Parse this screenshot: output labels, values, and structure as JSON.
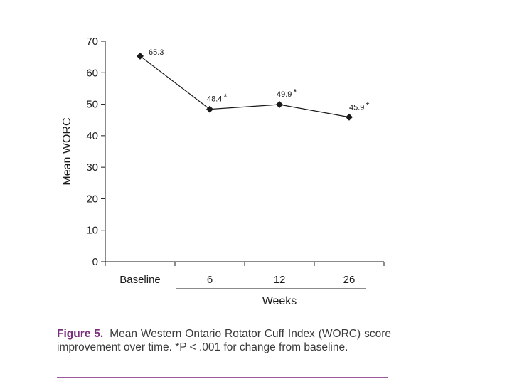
{
  "chart_data": {
    "type": "line",
    "categories": [
      "Baseline",
      "6",
      "12",
      "26"
    ],
    "values": [
      65.3,
      48.4,
      49.9,
      45.9
    ],
    "data_labels": [
      "65.3",
      "48.4",
      "49.9",
      "45.9"
    ],
    "significance_marks": [
      "",
      "*",
      "*",
      "*"
    ],
    "ylabel": "Mean WORC",
    "xlabel": "Weeks",
    "ylim": [
      0,
      70
    ],
    "yticks": [
      0,
      10,
      20,
      30,
      40,
      50,
      60,
      70
    ],
    "ytick_labels": [
      "0",
      "10",
      "20",
      "30",
      "40",
      "50",
      "60",
      "70"
    ],
    "weeks_group": [
      "6",
      "12",
      "26"
    ],
    "marker": "diamond",
    "line_color": "#1a1a1a",
    "grid": false
  },
  "caption": {
    "label": "Figure 5.",
    "text": "Mean Western Ontario Rotator Cuff Index (WORC) score improvement over time. *P < .001 for change from baseline."
  },
  "colors": {
    "caption_label": "#7a2f7e",
    "caption_text": "#3a3a3a",
    "rule": "#9e5a9e"
  }
}
